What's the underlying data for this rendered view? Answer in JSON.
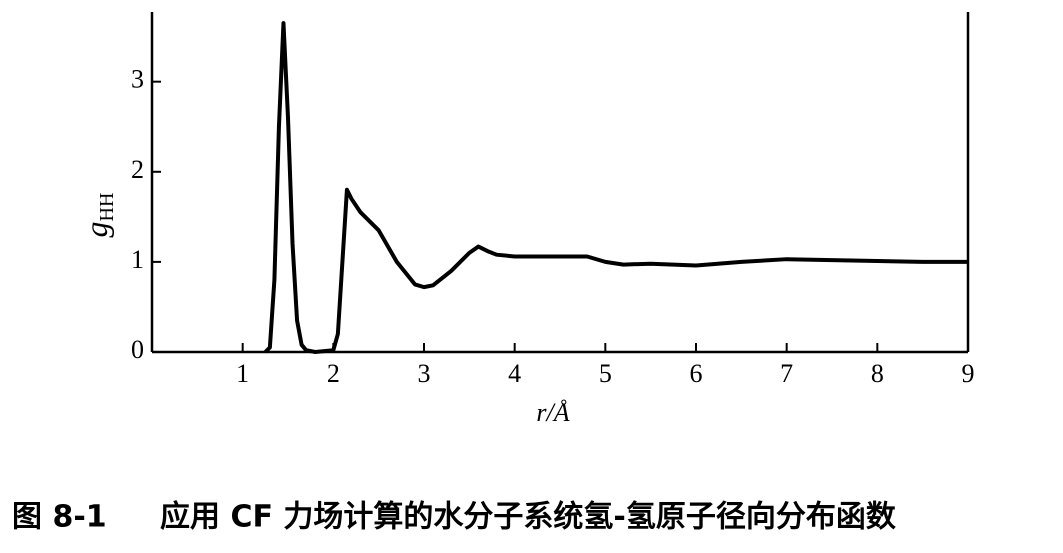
{
  "chart_data": {
    "type": "line",
    "ylabel": "g",
    "ylabel_sub": "HH",
    "xlabel": "r/Å",
    "figure_number": "图 8-1",
    "caption": "应用 CF 力场计算的水分子系统氢-氢原子径向分布函数",
    "color": "#000000",
    "x": [
      1.25,
      1.3,
      1.35,
      1.4,
      1.45,
      1.5,
      1.55,
      1.6,
      1.65,
      1.7,
      1.8,
      2.0,
      2.05,
      2.1,
      2.15,
      2.2,
      2.3,
      2.5,
      2.7,
      2.9,
      3.0,
      3.1,
      3.3,
      3.5,
      3.6,
      3.7,
      3.8,
      4.0,
      4.5,
      4.8,
      5.0,
      5.2,
      5.5,
      6.0,
      6.5,
      7.0,
      7.5,
      8.0,
      8.5,
      9.0
    ],
    "values": [
      0,
      0.05,
      0.8,
      2.5,
      3.65,
      2.6,
      1.2,
      0.35,
      0.08,
      0.02,
      0,
      0.02,
      0.2,
      1.0,
      1.8,
      1.7,
      1.55,
      1.35,
      1.0,
      0.75,
      0.72,
      0.74,
      0.9,
      1.1,
      1.17,
      1.12,
      1.08,
      1.06,
      1.06,
      1.06,
      1.0,
      0.97,
      0.98,
      0.96,
      1.0,
      1.03,
      1.02,
      1.01,
      1.0,
      1.0
    ],
    "xlim": [
      0,
      9
    ],
    "ylim": [
      0,
      3.74
    ],
    "xticks": [
      1,
      2,
      3,
      4,
      5,
      6,
      7,
      8,
      9
    ],
    "yticks": [
      0,
      1,
      2,
      3
    ]
  }
}
